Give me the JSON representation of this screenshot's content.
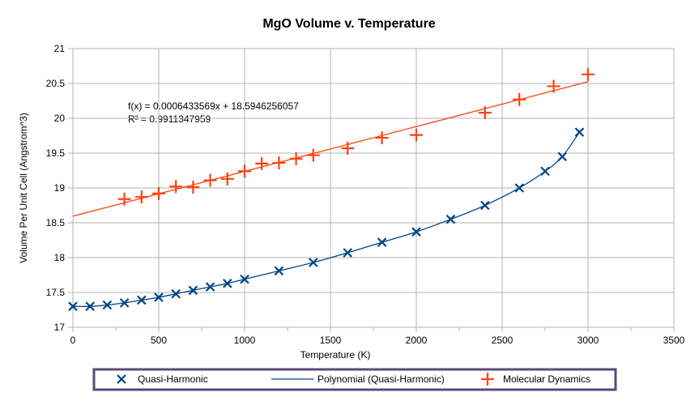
{
  "chart_data": {
    "type": "scatter",
    "title": "MgO Volume v. Temperature",
    "xlabel": "Temperature (K)",
    "ylabel": "Volume Per Unit Cell (Angstrom^3)",
    "xlim": [
      0,
      3500
    ],
    "ylim": [
      17,
      21
    ],
    "xticks": [
      0,
      500,
      1000,
      1500,
      2000,
      2500,
      3000,
      3500
    ],
    "yticks": [
      17,
      17.5,
      18,
      18.5,
      19,
      19.5,
      20,
      20.5,
      21
    ],
    "grid": true,
    "legend_placement": "bottom",
    "annotation": [
      "f(x) = 0.0006433569x + 18.5946256057",
      "R² = 0.9911347959"
    ],
    "trend": {
      "slope": 0.0006433569,
      "intercept": 18.5946256057,
      "range": [
        0,
        3000
      ]
    },
    "series": [
      {
        "name": "Quasi-Harmonic",
        "marker": "x",
        "color": "#004586",
        "x": [
          0,
          100,
          200,
          300,
          400,
          500,
          600,
          700,
          800,
          900,
          1000,
          1200,
          1400,
          1600,
          1800,
          2000,
          2200,
          2400,
          2600,
          2750,
          2850,
          2950
        ],
        "y": [
          17.3,
          17.3,
          17.32,
          17.35,
          17.39,
          17.43,
          17.48,
          17.53,
          17.58,
          17.63,
          17.69,
          17.81,
          17.93,
          18.07,
          18.22,
          18.37,
          18.55,
          18.75,
          19.0,
          19.24,
          19.45,
          19.8
        ]
      },
      {
        "name": "Polynomial (Quasi-Harmonic)",
        "marker": "line",
        "color": "#004586"
      },
      {
        "name": "Molecular Dynamics",
        "marker": "+",
        "color": "#ff420e",
        "x": [
          300,
          400,
          500,
          600,
          700,
          800,
          900,
          1000,
          1100,
          1200,
          1300,
          1400,
          1600,
          1800,
          2000,
          2400,
          2600,
          2800,
          3000
        ],
        "y": [
          18.84,
          18.87,
          18.92,
          19.02,
          19.01,
          19.11,
          19.13,
          19.24,
          19.35,
          19.36,
          19.42,
          19.47,
          19.57,
          19.72,
          19.76,
          20.08,
          20.27,
          20.46,
          20.63
        ]
      }
    ]
  }
}
